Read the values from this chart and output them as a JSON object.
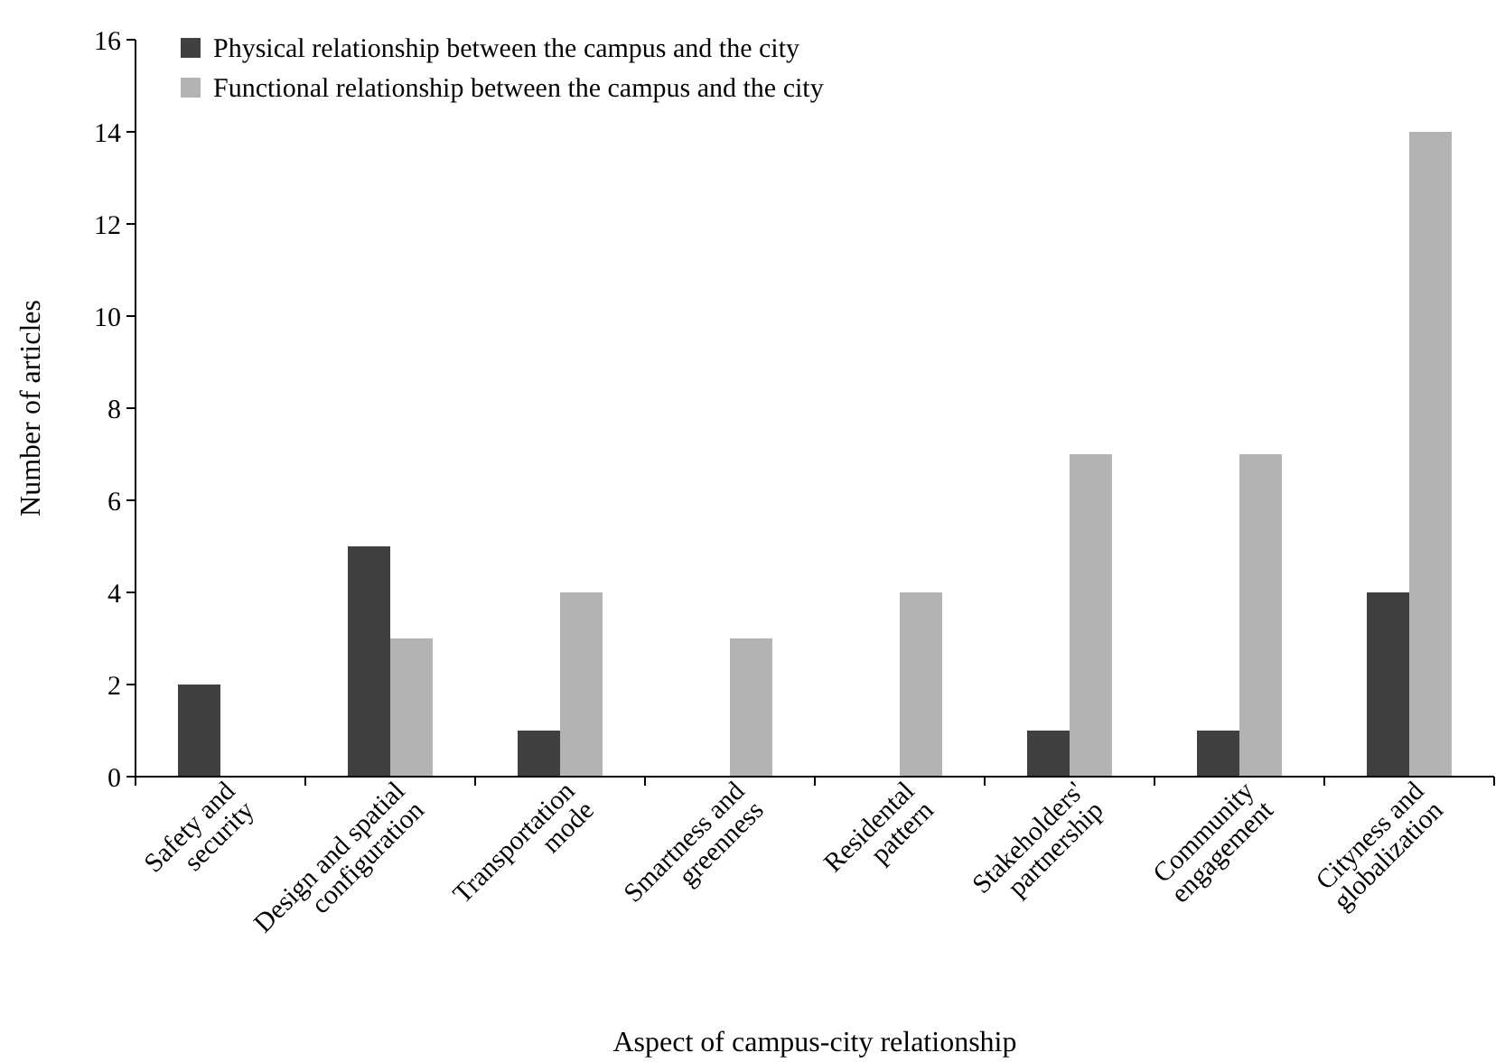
{
  "chart_data": {
    "type": "bar",
    "xlabel": "Aspect of campus-city relationship",
    "ylabel": "Number of articles",
    "categories": [
      "Safety and\nsecurity",
      "Design and spatial\nconfiguration",
      "Transportation\nmode",
      "Smartness and\ngreenness",
      "Residental\npattern",
      "Stakeholders'\npartnership",
      "Community\nengagement",
      "Cityness and\nglobalization"
    ],
    "series": [
      {
        "name": "Physical relationship between the campus and the city",
        "color": "#404040",
        "values": [
          2,
          5,
          1,
          0,
          0,
          1,
          1,
          4
        ]
      },
      {
        "name": "Functional relationship between the campus and the city",
        "color": "#b3b3b3",
        "values": [
          0,
          3,
          4,
          3,
          4,
          7,
          7,
          14
        ]
      }
    ],
    "ylim": [
      0,
      16
    ],
    "yticks": [
      0,
      2,
      4,
      6,
      8,
      10,
      12,
      14,
      16
    ],
    "grid": false,
    "legend": "top left"
  }
}
